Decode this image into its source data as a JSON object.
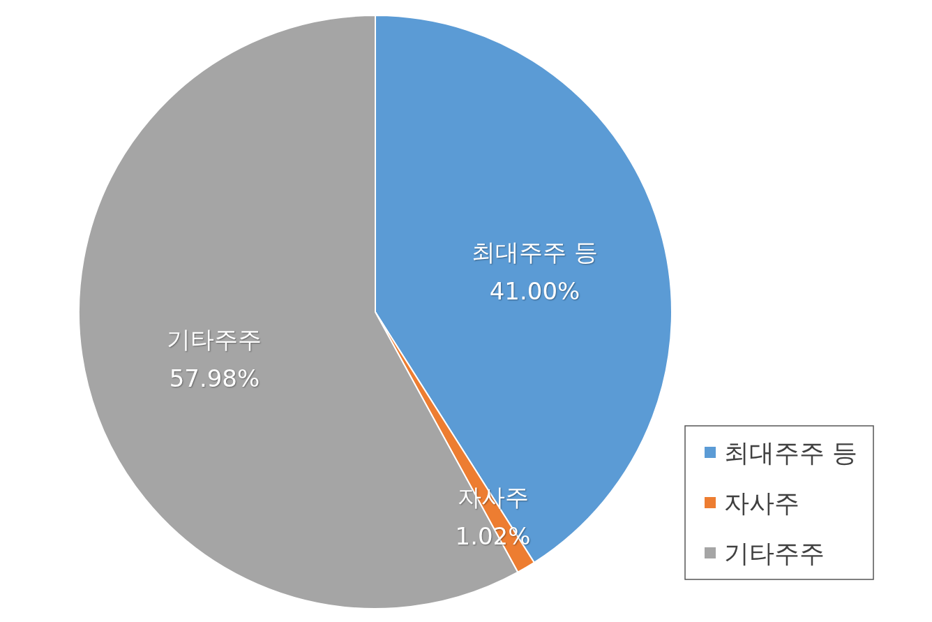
{
  "chart_data": {
    "type": "pie",
    "categories": [
      "최대주주 등",
      "자사주",
      "기타주주"
    ],
    "values": [
      41.0,
      1.02,
      57.98
    ],
    "colors": [
      "#5b9bd5",
      "#ed7d31",
      "#a5a5a5"
    ],
    "value_labels": [
      "41.00%",
      "1.02%",
      "57.98%"
    ],
    "legend": "bottom right"
  }
}
